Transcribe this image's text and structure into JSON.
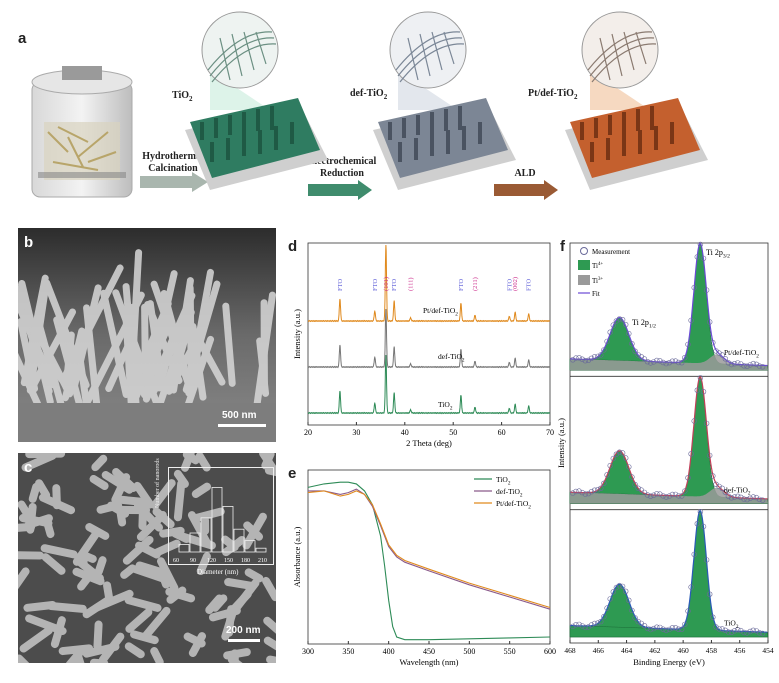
{
  "panel_a": {
    "letter": "a",
    "materials": [
      {
        "label": "TiO",
        "sub": "2",
        "color": "#2f7c61"
      },
      {
        "label": "def-TiO",
        "sub": "2",
        "color": "#7c8695"
      },
      {
        "label": "Pt/def-TiO",
        "sub": "2",
        "color": "#c4602e"
      }
    ],
    "arrows": [
      {
        "line1": "Hydrothermal",
        "line2": "Calcination",
        "color": "#a9b6ae"
      },
      {
        "line1": "Electrochemical",
        "line2": "Reduction",
        "color": "#3f8c6d"
      },
      {
        "line1": "ALD",
        "line2": "",
        "color": "#9a5a34"
      }
    ]
  },
  "panel_b": {
    "letter": "b",
    "scale_label": "500 nm"
  },
  "panel_c": {
    "letter": "c",
    "scale_label": "200 nm",
    "inset": {
      "xlabel": "Diameter (nm)",
      "ylabel": "Number of nanorods",
      "xticks": [
        "60",
        "90",
        "120",
        "150",
        "180",
        "210"
      ],
      "yticks": [
        "0",
        "5",
        "10",
        "15",
        "20"
      ]
    }
  },
  "chart_data": [
    {
      "panel": "d",
      "type": "line",
      "xlabel": "2 Theta (deg)",
      "ylabel": "Intensity (a.u.)",
      "xlim": [
        20,
        70
      ],
      "xticks": [
        "20",
        "30",
        "40",
        "50",
        "60",
        "70"
      ],
      "series": [
        {
          "name": "TiO2",
          "label": "TiO",
          "sub": "2",
          "color": "#2e8b57",
          "offset": 0
        },
        {
          "name": "def-TiO2",
          "label": "def-TiO",
          "sub": "2",
          "color": "#777777",
          "offset": 1
        },
        {
          "name": "Pt/def-TiO2",
          "label": "Pt/def-TiO",
          "sub": "2",
          "color": "#e08a1e",
          "offset": 2
        }
      ],
      "peaks": [
        {
          "x": 26.6,
          "h": 0.55
        },
        {
          "x": 33.8,
          "h": 0.25
        },
        {
          "x": 36.1,
          "h": 1.45
        },
        {
          "x": 37.8,
          "h": 0.5
        },
        {
          "x": 41.2,
          "h": 0.08
        },
        {
          "x": 51.6,
          "h": 0.45
        },
        {
          "x": 54.5,
          "h": 0.15
        },
        {
          "x": 61.6,
          "h": 0.12
        },
        {
          "x": 62.8,
          "h": 0.22
        },
        {
          "x": 65.6,
          "h": 0.18
        }
      ],
      "annotations": [
        {
          "text": "FTO",
          "x": 26.6,
          "color": "#5b5bd6"
        },
        {
          "text": "FTO",
          "x": 33.8,
          "color": "#5b5bd6"
        },
        {
          "text": "(101)",
          "x": 36.1,
          "color": "#cc2a8a"
        },
        {
          "text": "FTO",
          "x": 37.8,
          "color": "#5b5bd6"
        },
        {
          "text": "(111)",
          "x": 41.2,
          "color": "#cc2a8a"
        },
        {
          "text": "FTO",
          "x": 51.6,
          "color": "#5b5bd6"
        },
        {
          "text": "(211)",
          "x": 54.5,
          "color": "#cc2a8a"
        },
        {
          "text": "FTO",
          "x": 61.6,
          "color": "#5b5bd6"
        },
        {
          "text": "(002)",
          "x": 62.8,
          "color": "#cc2a8a"
        },
        {
          "text": "FTO",
          "x": 65.6,
          "color": "#5b5bd6"
        }
      ]
    },
    {
      "panel": "e",
      "type": "line",
      "xlabel": "Wavelength (nm)",
      "ylabel": "Absorbance (a.u.)",
      "xlim": [
        300,
        600
      ],
      "ylim": [
        0,
        1
      ],
      "xticks": [
        "300",
        "350",
        "400",
        "450",
        "500",
        "550",
        "600"
      ],
      "legend_position": "top-right",
      "series": [
        {
          "name": "TiO2",
          "label": "TiO",
          "sub": "2",
          "color": "#2e8b57",
          "x": [
            300,
            320,
            340,
            350,
            360,
            370,
            380,
            390,
            395,
            400,
            405,
            410,
            420,
            450,
            500,
            550,
            600
          ],
          "y": [
            0.9,
            0.92,
            0.93,
            0.93,
            0.92,
            0.88,
            0.8,
            0.62,
            0.45,
            0.25,
            0.1,
            0.04,
            0.025,
            0.025,
            0.03,
            0.035,
            0.04
          ]
        },
        {
          "name": "def-TiO2",
          "label": "def-TiO",
          "sub": "2",
          "color": "#8a5a8a",
          "x": [
            300,
            320,
            340,
            350,
            360,
            370,
            380,
            390,
            400,
            410,
            420,
            450,
            500,
            550,
            600
          ],
          "y": [
            0.88,
            0.88,
            0.86,
            0.87,
            0.89,
            0.86,
            0.79,
            0.68,
            0.56,
            0.5,
            0.47,
            0.42,
            0.34,
            0.27,
            0.2
          ]
        },
        {
          "name": "Pt/def-TiO2",
          "label": "Pt/def-TiO",
          "sub": "2",
          "color": "#e08a1e",
          "x": [
            300,
            320,
            340,
            350,
            360,
            370,
            380,
            390,
            400,
            410,
            420,
            450,
            500,
            550,
            600
          ],
          "y": [
            0.87,
            0.88,
            0.85,
            0.86,
            0.88,
            0.86,
            0.8,
            0.69,
            0.57,
            0.51,
            0.48,
            0.43,
            0.35,
            0.28,
            0.21
          ]
        }
      ]
    },
    {
      "panel": "f",
      "type": "line",
      "xlabel": "Binding Energy (eV)",
      "ylabel": "Intensity (a.u.)",
      "xlim": [
        468,
        454
      ],
      "xticks": [
        "468",
        "466",
        "464",
        "462",
        "460",
        "458",
        "456",
        "454"
      ],
      "legend": [
        {
          "text": "Measurement",
          "kind": "circle"
        },
        {
          "text": "Ti",
          "sup": "4+",
          "kind": "green"
        },
        {
          "text": "Ti",
          "sup": "3+",
          "kind": "gray"
        },
        {
          "text": "Fit",
          "kind": "line"
        }
      ],
      "peak_labels": [
        {
          "text": "Ti 2p",
          "sub": "3/2"
        },
        {
          "text": "Ti 2p",
          "sub": "1/2"
        }
      ],
      "subplots": [
        {
          "label": "Pt/def-TiO",
          "sub": "2",
          "fit_color": "#6a4ad6",
          "ti3": true
        },
        {
          "label": "def-TiO",
          "sub": "2",
          "fit_color": "#c2405a",
          "ti3": true
        },
        {
          "label": "TiO",
          "sub": "2",
          "fit_color": "#2a5ab8",
          "ti3": false
        }
      ],
      "peaks": {
        "ti4_32": {
          "center": 458.8,
          "height": 1.0
        },
        "ti4_12": {
          "center": 464.5,
          "height": 0.36
        },
        "ti3_32": {
          "center": 457.6,
          "height": 0.08
        }
      }
    }
  ]
}
